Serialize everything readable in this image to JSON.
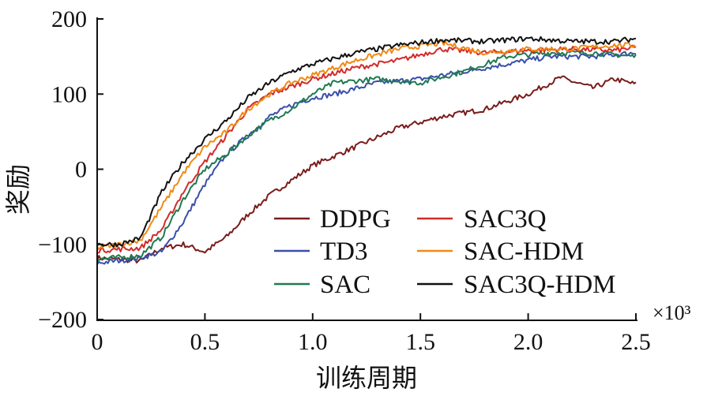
{
  "chart_data": {
    "type": "line",
    "title": "",
    "xlabel": "训练周期",
    "ylabel": "奖励",
    "x_multiplier": "×10³",
    "xlim": [
      0,
      2.5
    ],
    "ylim": [
      -200,
      200
    ],
    "xticks": [
      "0",
      "0.5",
      "1.0",
      "1.5",
      "2.0",
      "2.5"
    ],
    "xtick_values": [
      0,
      0.5,
      1.0,
      1.5,
      2.0,
      2.5
    ],
    "yticks": [
      "200",
      "100",
      "0",
      "−100",
      "−200"
    ],
    "ytick_values": [
      200,
      100,
      0,
      -100,
      -200
    ],
    "grid": false,
    "legend_position": "bottom-right",
    "series": [
      {
        "name": "DDPG",
        "color": "#7a1c1c",
        "x": [
          0,
          0.2,
          0.3,
          0.4,
          0.5,
          0.6,
          0.7,
          0.8,
          0.9,
          1.0,
          1.2,
          1.4,
          1.6,
          1.8,
          2.0,
          2.15,
          2.3,
          2.4,
          2.5
        ],
        "y": [
          -118,
          -122,
          -105,
          -100,
          -110,
          -90,
          -60,
          -35,
          -15,
          5,
          30,
          55,
          70,
          80,
          100,
          122,
          108,
          120,
          113
        ]
      },
      {
        "name": "TD3",
        "color": "#3a4fa8",
        "x": [
          0,
          0.2,
          0.3,
          0.4,
          0.5,
          0.6,
          0.7,
          0.8,
          0.9,
          1.0,
          1.1,
          1.3,
          1.5,
          1.7,
          1.9,
          2.1,
          2.3,
          2.5
        ],
        "y": [
          -125,
          -118,
          -110,
          -70,
          -20,
          20,
          45,
          70,
          85,
          95,
          100,
          115,
          120,
          130,
          140,
          150,
          150,
          155
        ]
      },
      {
        "name": "SAC",
        "color": "#1f7a50",
        "x": [
          0,
          0.2,
          0.3,
          0.4,
          0.5,
          0.6,
          0.7,
          0.8,
          0.9,
          1.0,
          1.1,
          1.3,
          1.5,
          1.7,
          1.9,
          2.1,
          2.3,
          2.5
        ],
        "y": [
          -120,
          -115,
          -90,
          -40,
          0,
          20,
          45,
          65,
          80,
          100,
          115,
          120,
          115,
          130,
          150,
          155,
          155,
          150
        ]
      },
      {
        "name": "SAC3Q",
        "color": "#d32a2a",
        "x": [
          0,
          0.2,
          0.3,
          0.4,
          0.5,
          0.6,
          0.7,
          0.8,
          0.9,
          1.0,
          1.2,
          1.4,
          1.6,
          1.8,
          2.0,
          2.2,
          2.4,
          2.5
        ],
        "y": [
          -108,
          -105,
          -80,
          -30,
          10,
          45,
          80,
          100,
          110,
          120,
          135,
          145,
          160,
          155,
          158,
          160,
          158,
          162
        ]
      },
      {
        "name": "SAC-HDM",
        "color": "#f08a14",
        "x": [
          0,
          0.2,
          0.3,
          0.4,
          0.5,
          0.6,
          0.7,
          0.8,
          0.9,
          1.0,
          1.2,
          1.4,
          1.6,
          1.8,
          2.0,
          2.2,
          2.4,
          2.5
        ],
        "y": [
          -105,
          -95,
          -50,
          -5,
          30,
          50,
          80,
          100,
          115,
          125,
          145,
          160,
          168,
          155,
          160,
          160,
          165,
          165
        ]
      },
      {
        "name": "SAC3Q-HDM",
        "color": "#111111",
        "x": [
          0,
          0.1,
          0.2,
          0.3,
          0.4,
          0.5,
          0.6,
          0.7,
          0.8,
          0.9,
          1.0,
          1.2,
          1.4,
          1.6,
          1.8,
          2.0,
          2.2,
          2.4,
          2.5
        ],
        "y": [
          -100,
          -100,
          -92,
          -30,
          10,
          40,
          65,
          95,
          115,
          130,
          140,
          155,
          165,
          172,
          170,
          174,
          170,
          170,
          174
        ]
      }
    ]
  }
}
